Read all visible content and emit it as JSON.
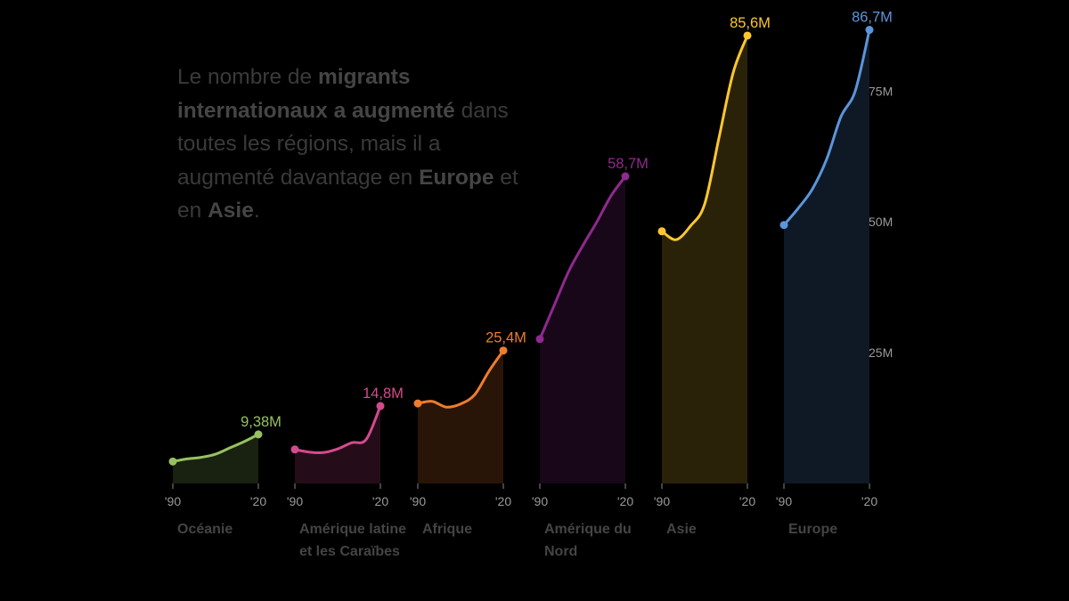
{
  "headline": {
    "part1": "Le nombre de ",
    "bold1": "migrants internationaux a augmenté",
    "part2": " dans toutes les régions, mais il a augmenté davantage en ",
    "bold2": "Europe",
    "part3": " et en ",
    "bold3": "Asie",
    "part4": "."
  },
  "chart_data": {
    "type": "area",
    "y_unit": "millions",
    "ylim": [
      0,
      89
    ],
    "y_ticks": [
      {
        "value": 25,
        "label": "25M"
      },
      {
        "value": 50,
        "label": "50M"
      },
      {
        "value": 75,
        "label": "75M"
      }
    ],
    "x_tick_labels": [
      "'90",
      "'20"
    ],
    "series": [
      {
        "name": "Océanie",
        "color": "#97c15f",
        "end_label": "9,38M",
        "x": [
          1990,
          1995,
          2000,
          2005,
          2010,
          2015,
          2020
        ],
        "values": [
          4.2,
          4.7,
          5.0,
          5.6,
          6.8,
          8.0,
          9.38
        ]
      },
      {
        "name": "Amérique latine et les Caraïbes",
        "color": "#d34b8e",
        "end_label": "14,8M",
        "x": [
          1990,
          1995,
          2000,
          2005,
          2010,
          2015,
          2020
        ],
        "values": [
          6.5,
          6.0,
          5.9,
          6.6,
          7.8,
          8.4,
          14.8
        ]
      },
      {
        "name": "Afrique",
        "color": "#ee7d2c",
        "end_label": "25,4M",
        "x": [
          1990,
          1995,
          2000,
          2005,
          2010,
          2015,
          2020
        ],
        "values": [
          15.3,
          15.7,
          14.6,
          15.2,
          17.0,
          21.5,
          25.4
        ]
      },
      {
        "name": "Amérique du Nord",
        "color": "#8f2a8e",
        "end_label": "58,7M",
        "x": [
          1990,
          1995,
          2000,
          2005,
          2010,
          2015,
          2020
        ],
        "values": [
          27.6,
          34.0,
          40.4,
          45.4,
          50.0,
          55.0,
          58.7
        ]
      },
      {
        "name": "Asie",
        "color": "#fcc72e",
        "end_label": "85,6M",
        "x": [
          1990,
          1995,
          2000,
          2005,
          2010,
          2015,
          2020
        ],
        "values": [
          48.2,
          46.6,
          49.2,
          53.4,
          66.0,
          78.5,
          85.6
        ]
      },
      {
        "name": "Europe",
        "color": "#5b95dc",
        "end_label": "86,7M",
        "x": [
          1990,
          1995,
          2000,
          2005,
          2010,
          2015,
          2020
        ],
        "values": [
          49.4,
          52.6,
          56.3,
          62.0,
          70.1,
          75.0,
          86.7
        ]
      }
    ]
  }
}
